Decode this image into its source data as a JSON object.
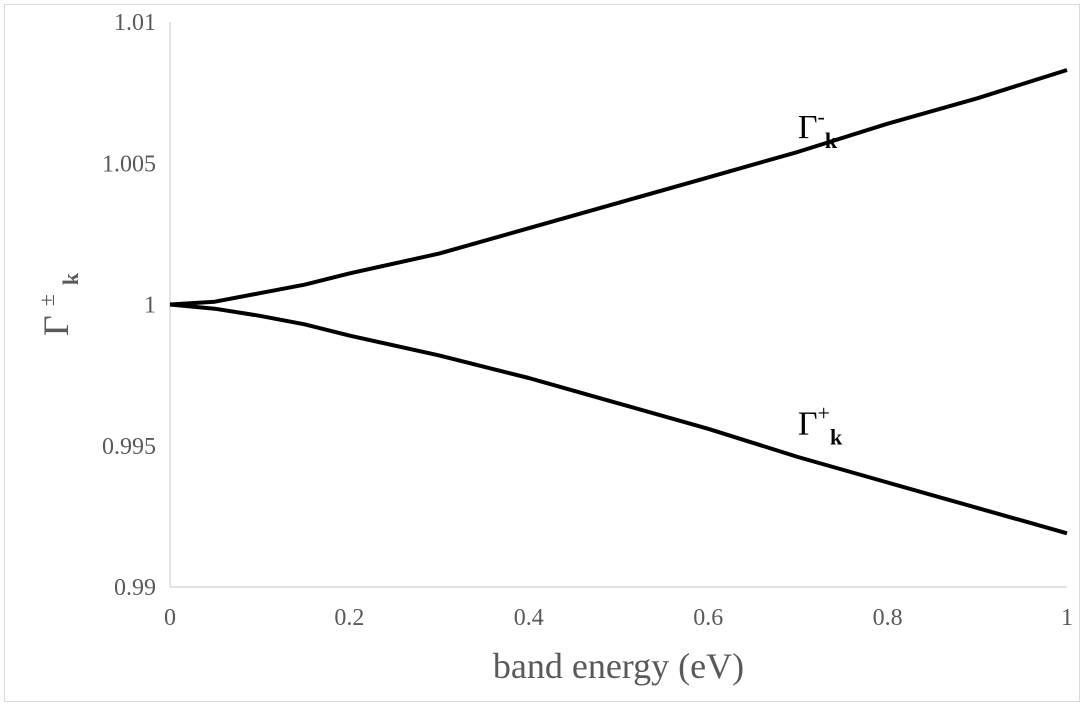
{
  "chart_data": {
    "type": "line",
    "xlabel": "band energy (eV)",
    "ylabel": {
      "base": "Γ",
      "sup": "±",
      "sub": "k"
    },
    "xlim": [
      0,
      1
    ],
    "ylim": [
      0.99,
      1.01
    ],
    "x_ticks": [
      "0",
      "0.2",
      "0.4",
      "0.6",
      "0.8",
      "1"
    ],
    "y_ticks": [
      "0.99",
      "0.995",
      "1",
      "1.005",
      "1.01"
    ],
    "grid": false,
    "legend": "none",
    "line_color": "#000000",
    "x": [
      0,
      0.05,
      0.1,
      0.15,
      0.2,
      0.3,
      0.4,
      0.5,
      0.6,
      0.7,
      0.8,
      0.9,
      1.0
    ],
    "series": [
      {
        "label": {
          "base": "Γ",
          "sup": "-",
          "sub": "k"
        },
        "label_at": [
          0.7,
          1.0059
        ],
        "values": [
          1.0,
          1.0001,
          1.0004,
          1.0007,
          1.0011,
          1.0018,
          1.0027,
          1.0036,
          1.0045,
          1.0054,
          1.0064,
          1.0073,
          1.0083
        ]
      },
      {
        "label": {
          "base": "Γ",
          "sup": "+",
          "sub": "k"
        },
        "label_at": [
          0.7,
          0.9954
        ],
        "values": [
          1.0,
          0.99985,
          0.9996,
          0.9993,
          0.9989,
          0.9982,
          0.9974,
          0.9965,
          0.9956,
          0.9946,
          0.9937,
          0.9928,
          0.9919
        ]
      }
    ]
  }
}
